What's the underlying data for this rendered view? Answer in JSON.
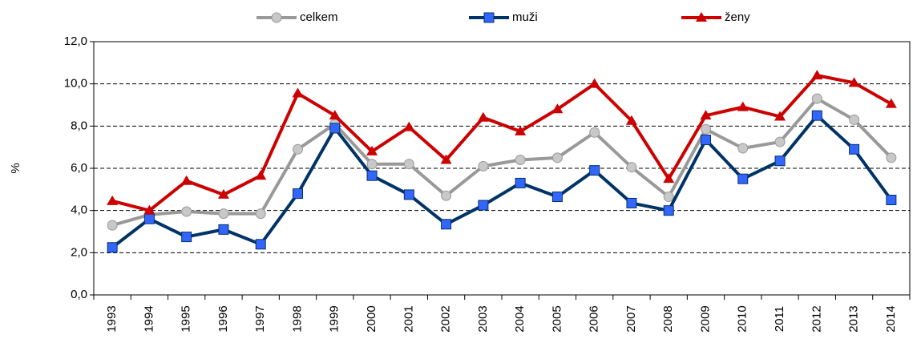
{
  "chart_data": {
    "type": "line",
    "y_label": "%",
    "categories": [
      "1993",
      "1994",
      "1995",
      "1996",
      "1997",
      "1998",
      "1999",
      "2000",
      "2001",
      "2002",
      "2003",
      "2004",
      "2005",
      "2006",
      "2007",
      "2008",
      "2009",
      "2010",
      "2011",
      "2012",
      "2013",
      "2014"
    ],
    "series": [
      {
        "name": "celkem",
        "color": "#999999",
        "marker": "circle",
        "marker_color": "#c8c8c8",
        "values": [
          3.3,
          3.8,
          3.95,
          3.85,
          3.85,
          6.9,
          8.1,
          6.2,
          6.2,
          4.7,
          6.1,
          6.4,
          6.5,
          7.7,
          6.05,
          4.65,
          7.85,
          6.95,
          7.25,
          9.3,
          8.3,
          6.5
        ]
      },
      {
        "name": "muži",
        "color": "#003366",
        "marker": "square",
        "marker_color": "#3366ff",
        "values": [
          2.25,
          3.6,
          2.75,
          3.1,
          2.4,
          4.8,
          7.9,
          5.65,
          4.75,
          3.35,
          4.25,
          5.3,
          4.65,
          5.9,
          4.35,
          4.0,
          7.35,
          5.5,
          6.35,
          8.5,
          6.9,
          4.5
        ]
      },
      {
        "name": "ženy",
        "color": "#cc0000",
        "marker": "triangle",
        "marker_color": "#cc0000",
        "values": [
          4.45,
          4.0,
          5.4,
          4.75,
          5.65,
          9.55,
          8.5,
          6.8,
          7.95,
          6.4,
          8.4,
          7.75,
          8.8,
          10.0,
          8.25,
          5.5,
          8.5,
          8.9,
          8.45,
          10.4,
          10.05,
          9.05
        ]
      }
    ],
    "ylim": [
      0,
      12
    ],
    "yticks": [
      {
        "value": 0,
        "label": "0,0"
      },
      {
        "value": 2,
        "label": "2,0"
      },
      {
        "value": 4,
        "label": "4,0"
      },
      {
        "value": 6,
        "label": "6,0"
      },
      {
        "value": 8,
        "label": "8,0"
      },
      {
        "value": 10,
        "label": "10,0"
      },
      {
        "value": 12,
        "label": "12,0"
      }
    ],
    "grid": true,
    "legend": "top"
  }
}
